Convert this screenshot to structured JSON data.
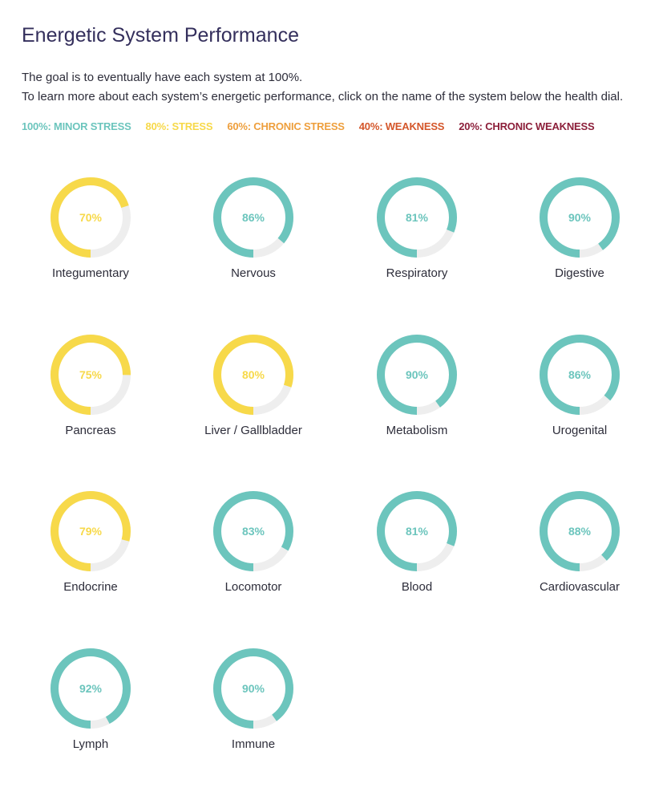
{
  "page": {
    "title": "Energetic System Performance",
    "intro_line1": "The goal is to eventually have each system at 100%.",
    "intro_line2": "To learn more about each system’s energetic performance, click on the name of the system below the health dial."
  },
  "legend": [
    {
      "label": "100%: MINOR STRESS",
      "color": "#6cc5bd"
    },
    {
      "label": "80%: STRESS",
      "color": "#f7d94a"
    },
    {
      "label": "60%: CHRONIC STRESS",
      "color": "#ee9f3d"
    },
    {
      "label": "40%: WEAKNESS",
      "color": "#d4562a"
    },
    {
      "label": "20%: CHRONIC WEAKNESS",
      "color": "#8c1f3a"
    }
  ],
  "colors": {
    "teal": "#6cc5bd",
    "yellow": "#f7d94a",
    "track": "#eeeeee"
  },
  "systems": [
    {
      "name": "Integumentary",
      "value": 70,
      "label": "70%",
      "color": "yellow"
    },
    {
      "name": "Nervous",
      "value": 86,
      "label": "86%",
      "color": "teal"
    },
    {
      "name": "Respiratory",
      "value": 81,
      "label": "81%",
      "color": "teal"
    },
    {
      "name": "Digestive",
      "value": 90,
      "label": "90%",
      "color": "teal"
    },
    {
      "name": "Pancreas",
      "value": 75,
      "label": "75%",
      "color": "yellow"
    },
    {
      "name": "Liver / Gallbladder",
      "value": 80,
      "label": "80%",
      "color": "yellow"
    },
    {
      "name": "Metabolism",
      "value": 90,
      "label": "90%",
      "color": "teal"
    },
    {
      "name": "Urogenital",
      "value": 86,
      "label": "86%",
      "color": "teal"
    },
    {
      "name": "Endocrine",
      "value": 79,
      "label": "79%",
      "color": "yellow"
    },
    {
      "name": "Locomotor",
      "value": 83,
      "label": "83%",
      "color": "teal"
    },
    {
      "name": "Blood",
      "value": 81,
      "label": "81%",
      "color": "teal"
    },
    {
      "name": "Cardiovascular",
      "value": 88,
      "label": "88%",
      "color": "teal"
    },
    {
      "name": "Lymph",
      "value": 92,
      "label": "92%",
      "color": "teal"
    },
    {
      "name": "Immune",
      "value": 90,
      "label": "90%",
      "color": "teal"
    }
  ]
}
